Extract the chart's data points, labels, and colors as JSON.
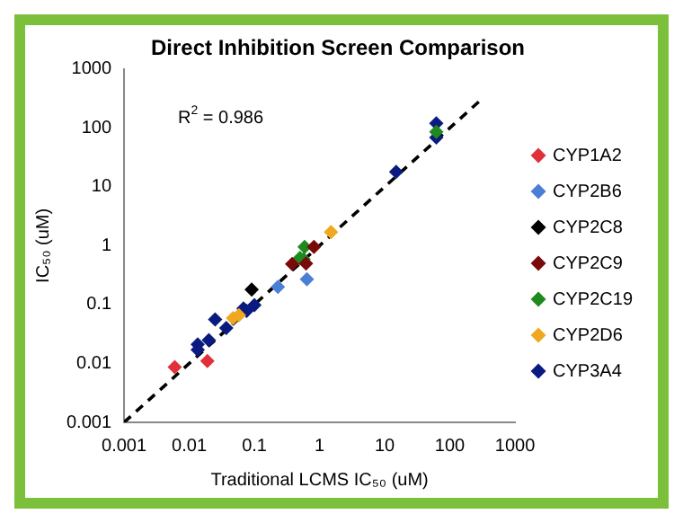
{
  "chart_data": {
    "type": "scatter",
    "title": "Direct Inhibition Screen Comparison",
    "xlabel": "Traditional LCMS IC₅₀ (uM)",
    "ylabel": "IC₅₀ (uM)",
    "log": "xy",
    "xlim": [
      0.001,
      1000
    ],
    "ylim": [
      0.001,
      1000
    ],
    "xticks": [
      0.001,
      0.01,
      0.1,
      1,
      10,
      100,
      1000
    ],
    "yticks": [
      0.001,
      0.01,
      0.1,
      1,
      10,
      100,
      1000
    ],
    "grid": false,
    "legend": "right",
    "marker": "diamond",
    "annotations": [
      {
        "text": "R$^{2}$ = 0.986"
      }
    ],
    "series": [
      {
        "name": "CYP1A2",
        "color": "#e0303a",
        "x": [
          0.006,
          0.019
        ],
        "values": [
          0.0087,
          0.011
        ]
      },
      {
        "name": "CYP2B6",
        "color": "#4a7fd6",
        "x": [
          0.23,
          0.64
        ],
        "values": [
          0.2,
          0.27
        ]
      },
      {
        "name": "CYP2C8",
        "color": "#000000",
        "x": [
          0.091
        ],
        "values": [
          0.18
        ]
      },
      {
        "name": "CYP2C9",
        "color": "#7a0a0a",
        "x": [
          0.38,
          0.82,
          0.62
        ],
        "values": [
          0.49,
          0.95,
          0.5
        ]
      },
      {
        "name": "CYP2C19",
        "color": "#1e8a1e",
        "x": [
          0.59,
          0.5,
          0.57,
          62
        ],
        "values": [
          0.95,
          0.62,
          0.59,
          86
        ]
      },
      {
        "name": "CYP2D6",
        "color": "#f0a820",
        "x": [
          1.5,
          0.047,
          0.058
        ],
        "values": [
          1.7,
          0.059,
          0.066
        ]
      },
      {
        "name": "CYP3A4",
        "color": "#0a1a80",
        "x": [
          0.0135,
          0.0135,
          0.02,
          0.025,
          0.037,
          0.068,
          0.076,
          0.1,
          15,
          62,
          62
        ],
        "values": [
          0.021,
          0.017,
          0.025,
          0.056,
          0.04,
          0.086,
          0.078,
          0.098,
          18,
          120,
          69
        ]
      },
      {
        "type": "line",
        "color": "#000000",
        "line_style": "dashed",
        "marker": "none",
        "x": [
          0.001,
          300
        ],
        "values": [
          0.001,
          300
        ]
      }
    ]
  }
}
